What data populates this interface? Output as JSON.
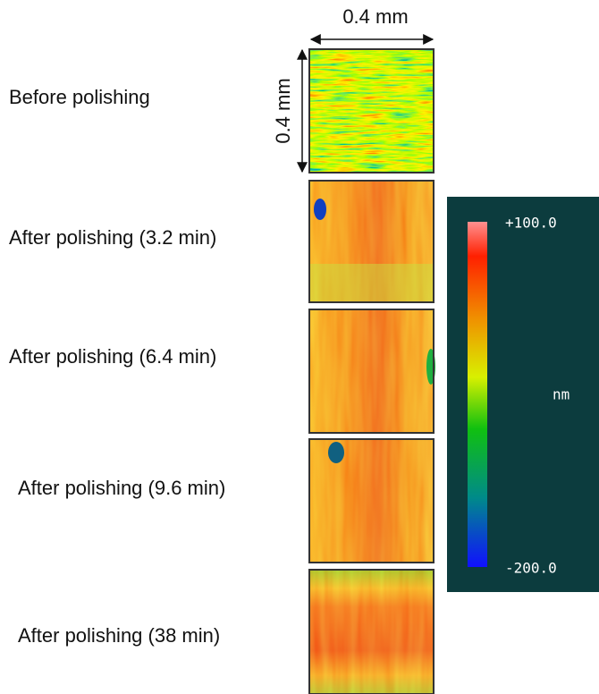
{
  "scale": {
    "horizontal": "0.4 mm",
    "vertical": "0.4 mm"
  },
  "samples": [
    {
      "label": "Before polishing"
    },
    {
      "label": "After polishing (3.2 min)"
    },
    {
      "label": "After polishing (6.4 min)"
    },
    {
      "label": "After polishing (9.6 min)"
    },
    {
      "label": "After polishing (38 min)"
    }
  ],
  "colorbar": {
    "max": "+100.0",
    "unit": "nm",
    "min": "-200.0"
  }
}
